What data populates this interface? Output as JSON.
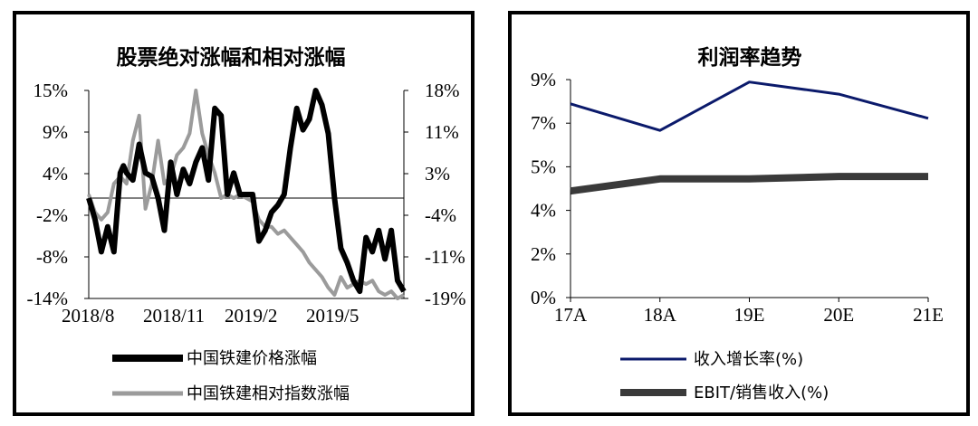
{
  "chart_data": [
    {
      "type": "line",
      "title": "股票绝对涨幅和相对涨幅",
      "x_tick_labels": [
        "2018/8",
        "2018/11",
        "2019/2",
        "2019/5"
      ],
      "y_left_tick_labels": [
        "15%",
        "9%",
        "4%",
        "-2%",
        "-8%",
        "-14%"
      ],
      "y_right_tick_labels": [
        "18%",
        "11%",
        "3%",
        "-4%",
        "-11%",
        "-19%"
      ],
      "ylim_left": [
        -14,
        15
      ],
      "ylim_right": [
        -19,
        18
      ],
      "grid": false,
      "legend_position": "bottom",
      "series": [
        {
          "name": "中国铁建价格涨幅",
          "axis": "left",
          "color": "#000000",
          "x": [
            0,
            2,
            4,
            6,
            8,
            10,
            11,
            12,
            14,
            16,
            18,
            20,
            22,
            24,
            26,
            28,
            30,
            32,
            34,
            36,
            38,
            40,
            42,
            44,
            46,
            48,
            50,
            52,
            54,
            56,
            58,
            60,
            62,
            64,
            66,
            68,
            70,
            72,
            74,
            76,
            78,
            80,
            82,
            84,
            86,
            88,
            90,
            92,
            94,
            96,
            98,
            100
          ],
          "y": [
            0,
            -3,
            -7.5,
            -4,
            -7.5,
            3.5,
            4.5,
            3.5,
            2.5,
            7.5,
            3.5,
            3,
            0,
            -4.5,
            5,
            0.5,
            4,
            2,
            5,
            7,
            2.5,
            12.5,
            11.5,
            0.5,
            3.5,
            0.5,
            0.5,
            0.5,
            -6,
            -4.5,
            -2,
            -1,
            0.5,
            7,
            12.5,
            9.5,
            11,
            15,
            13,
            9,
            0,
            -7,
            -9,
            -11.5,
            -13,
            -5.5,
            -7.5,
            -4.5,
            -8.5,
            -4.5,
            -11.5,
            -13
          ]
        },
        {
          "name": "中国铁建相对指数涨幅",
          "axis": "left",
          "color": "#9b9b9b",
          "x": [
            0,
            2,
            4,
            6,
            8,
            10,
            12,
            14,
            16,
            18,
            20,
            22,
            24,
            26,
            28,
            30,
            32,
            34,
            36,
            38,
            40,
            42,
            44,
            46,
            48,
            50,
            52,
            54,
            56,
            58,
            60,
            62,
            64,
            66,
            68,
            70,
            72,
            74,
            76,
            78,
            80,
            82,
            84,
            86,
            88,
            90,
            92,
            94,
            96,
            98,
            100
          ],
          "y": [
            0.5,
            -2,
            -3,
            -2,
            2,
            3,
            2,
            8,
            11.5,
            -1.5,
            2,
            8,
            2,
            3,
            6,
            7,
            9,
            15,
            9,
            6,
            3.5,
            0,
            0.5,
            0,
            0.5,
            0,
            -0.5,
            -3,
            -4,
            -4,
            -5,
            -4.5,
            -5.5,
            -6.5,
            -7.5,
            -9,
            -10,
            -11,
            -12.5,
            -13.5,
            -11,
            -12.5,
            -12,
            -11.5,
            -12,
            -11.5,
            -13,
            -13.5,
            -13,
            -14,
            -13.5
          ]
        }
      ]
    },
    {
      "type": "line",
      "title": "利润率趋势",
      "categories": [
        "17A",
        "18A",
        "19E",
        "20E",
        "21E"
      ],
      "y_tick_labels": [
        "9%",
        "7%",
        "5%",
        "4%",
        "2%",
        "0%"
      ],
      "ylim": [
        0,
        9
      ],
      "grid": false,
      "legend_position": "bottom",
      "series": [
        {
          "name": "收入增长率(%)",
          "color": "#0b1a6b",
          "values": [
            8.0,
            6.9,
            8.9,
            8.4,
            7.4
          ]
        },
        {
          "name": "EBIT/销售收入(%)",
          "color": "#3a3a3a",
          "values": [
            4.4,
            4.9,
            4.9,
            5.0,
            5.0
          ]
        }
      ]
    }
  ]
}
